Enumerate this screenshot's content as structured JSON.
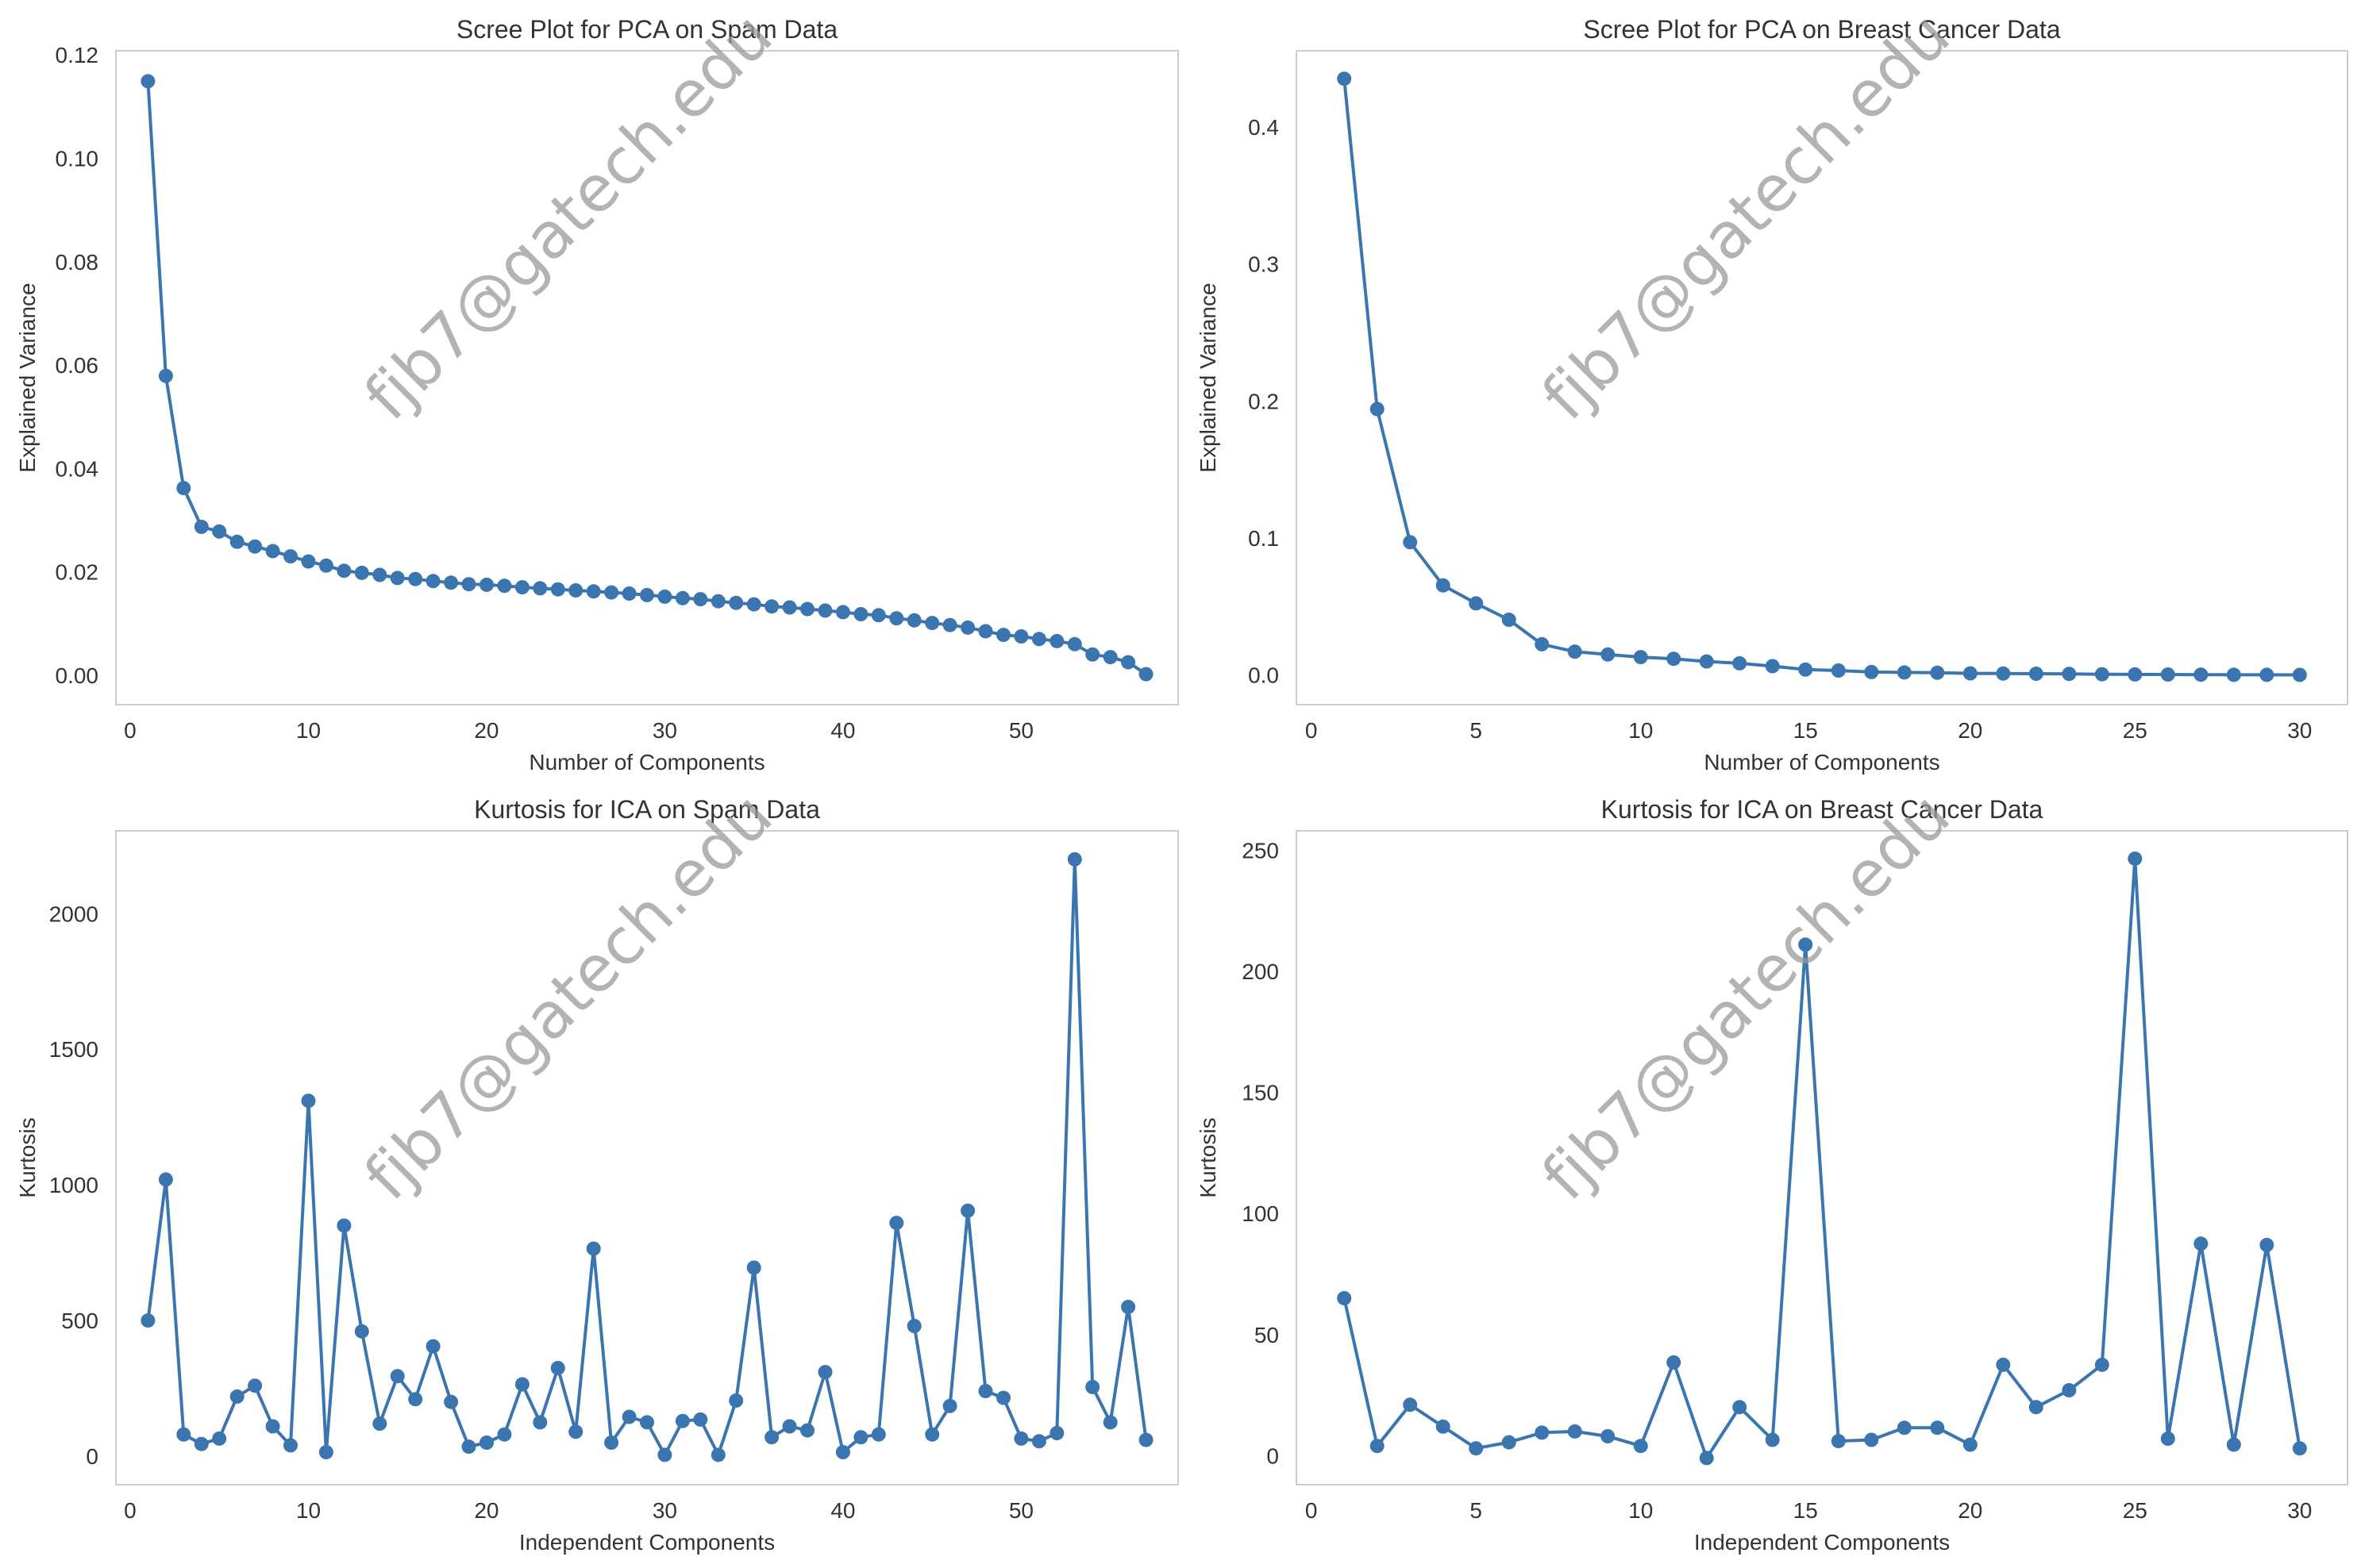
{
  "watermark": "fjb7@gatech.edu",
  "chart_data": [
    {
      "type": "line",
      "title": "Scree Plot for PCA on Spam Data",
      "xlabel": "Number of Components",
      "ylabel": "Explained Variance",
      "xlim": [
        -0.8,
        58.8
      ],
      "ylim": [
        -0.0057,
        0.1208
      ],
      "xticks": [
        0,
        10,
        20,
        30,
        40,
        50
      ],
      "yticks": [
        0.0,
        0.02,
        0.04,
        0.06,
        0.08,
        0.1,
        0.12
      ],
      "yticklabels": [
        "0.00",
        "0.02",
        "0.04",
        "0.06",
        "0.08",
        "0.10",
        "0.12"
      ],
      "grid": false,
      "color": "#3a75b0",
      "x": [
        1,
        2,
        3,
        4,
        5,
        6,
        7,
        8,
        9,
        10,
        11,
        12,
        13,
        14,
        15,
        16,
        17,
        18,
        19,
        20,
        21,
        22,
        23,
        24,
        25,
        26,
        27,
        28,
        29,
        30,
        31,
        32,
        33,
        34,
        35,
        36,
        37,
        38,
        39,
        40,
        41,
        42,
        43,
        44,
        45,
        46,
        47,
        48,
        49,
        50,
        51,
        52,
        53,
        54,
        55,
        56,
        57
      ],
      "y": [
        0.1149,
        0.0579,
        0.0362,
        0.0287,
        0.0278,
        0.0258,
        0.0249,
        0.024,
        0.023,
        0.022,
        0.0212,
        0.0202,
        0.0198,
        0.0194,
        0.0188,
        0.0186,
        0.0182,
        0.0179,
        0.0176,
        0.0175,
        0.0173,
        0.017,
        0.0168,
        0.0166,
        0.0164,
        0.0162,
        0.016,
        0.0158,
        0.0155,
        0.0152,
        0.0149,
        0.0147,
        0.0143,
        0.014,
        0.0137,
        0.0133,
        0.0131,
        0.0128,
        0.0125,
        0.0122,
        0.0118,
        0.0116,
        0.011,
        0.0106,
        0.0101,
        0.0097,
        0.0092,
        0.0085,
        0.0078,
        0.0075,
        0.007,
        0.0066,
        0.006,
        0.004,
        0.0035,
        0.0025,
        0.0002
      ]
    },
    {
      "type": "line",
      "title": "Scree Plot for PCA on Breast Cancer Data",
      "xlabel": "Number of Components",
      "ylabel": "Explained Variance",
      "xlim": [
        -0.45,
        31.45
      ],
      "ylim": [
        -0.0217,
        0.4557
      ],
      "xticks": [
        0,
        5,
        10,
        15,
        20,
        25,
        30
      ],
      "yticks": [
        0.0,
        0.1,
        0.2,
        0.3,
        0.4
      ],
      "yticklabels": [
        "0.0",
        "0.1",
        "0.2",
        "0.3",
        "0.4"
      ],
      "grid": false,
      "color": "#3a75b0",
      "x": [
        1,
        2,
        3,
        4,
        5,
        6,
        7,
        8,
        9,
        10,
        11,
        12,
        13,
        14,
        15,
        16,
        17,
        18,
        19,
        20,
        21,
        22,
        23,
        24,
        25,
        26,
        27,
        28,
        29,
        30
      ],
      "y": [
        0.4353,
        0.1941,
        0.0969,
        0.0654,
        0.0522,
        0.0403,
        0.0224,
        0.017,
        0.0149,
        0.013,
        0.0118,
        0.0098,
        0.0085,
        0.0064,
        0.0039,
        0.0032,
        0.0021,
        0.0018,
        0.0016,
        0.0011,
        0.001,
        0.0009,
        0.0008,
        0.0005,
        0.0004,
        0.0003,
        0.0002,
        0.0001,
        0.0001,
        0.0
      ]
    },
    {
      "type": "line",
      "title": "Kurtosis for ICA on Spam Data",
      "xlabel": "Independent Components",
      "ylabel": "Kurtosis",
      "xlim": [
        -0.8,
        58.8
      ],
      "ylim": [
        -105,
        2305
      ],
      "xticks": [
        0,
        10,
        20,
        30,
        40,
        50
      ],
      "yticks": [
        0,
        500,
        1000,
        1500,
        2000
      ],
      "yticklabels": [
        "0",
        "500",
        "1000",
        "1500",
        "2000"
      ],
      "grid": false,
      "color": "#3a75b0",
      "x": [
        1,
        2,
        3,
        4,
        5,
        6,
        7,
        8,
        9,
        10,
        11,
        12,
        13,
        14,
        15,
        16,
        17,
        18,
        19,
        20,
        21,
        22,
        23,
        24,
        25,
        26,
        27,
        28,
        29,
        30,
        31,
        32,
        33,
        34,
        35,
        36,
        37,
        38,
        39,
        40,
        41,
        42,
        43,
        44,
        45,
        46,
        47,
        48,
        49,
        50,
        51,
        52,
        53,
        54,
        55,
        56,
        57
      ],
      "y": [
        500,
        1020,
        80,
        45,
        65,
        220,
        260,
        110,
        40,
        1310,
        15,
        850,
        460,
        120,
        295,
        210,
        405,
        200,
        35,
        50,
        80,
        265,
        125,
        325,
        90,
        765,
        50,
        145,
        125,
        5,
        130,
        135,
        5,
        205,
        695,
        70,
        110,
        95,
        310,
        15,
        70,
        80,
        860,
        480,
        80,
        185,
        905,
        240,
        215,
        65,
        55,
        85,
        2200,
        255,
        125,
        550,
        60
      ]
    },
    {
      "type": "line",
      "title": "Kurtosis for ICA on Breast Cancer Data",
      "xlabel": "Independent Components",
      "ylabel": "Kurtosis",
      "xlim": [
        -0.45,
        31.45
      ],
      "ylim": [
        -12,
        258
      ],
      "xticks": [
        0,
        5,
        10,
        15,
        20,
        25,
        30
      ],
      "yticks": [
        0,
        50,
        100,
        150,
        200,
        250
      ],
      "yticklabels": [
        "0",
        "50",
        "100",
        "150",
        "200",
        "250"
      ],
      "grid": false,
      "color": "#3a75b0",
      "x": [
        1,
        2,
        3,
        4,
        5,
        6,
        7,
        8,
        9,
        10,
        11,
        12,
        13,
        14,
        15,
        16,
        17,
        18,
        19,
        20,
        21,
        22,
        23,
        24,
        25,
        26,
        27,
        28,
        29,
        30
      ],
      "y": [
        65,
        4,
        21,
        12,
        3,
        5.5,
        9.5,
        10,
        8,
        4,
        38.5,
        -1,
        20,
        6.5,
        211,
        6,
        6.5,
        11.5,
        11.5,
        4.5,
        37.5,
        20,
        27,
        37.5,
        246.5,
        7,
        87.5,
        4.5,
        87,
        3
      ]
    }
  ]
}
